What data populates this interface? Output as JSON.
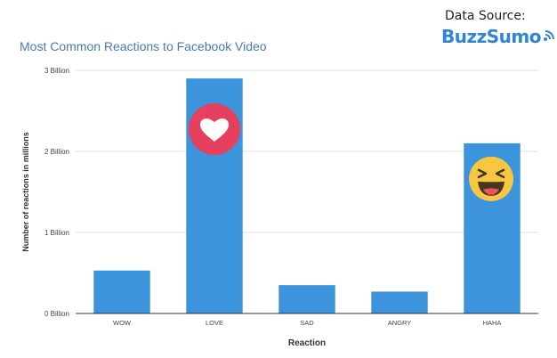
{
  "header": {
    "source_label": "Data Source:",
    "brand_name": "BuzzSumo"
  },
  "colors": {
    "bar": "#3b94dc",
    "title": "#4a7ab0",
    "brand": "#2f86d4",
    "love_badge": "#e6405f",
    "haha_badge": "#f7c642"
  },
  "icons": {
    "love_bar": "heart-icon",
    "haha_bar": "laughing-emoji-icon",
    "brand": "wifi-signal-icon"
  },
  "chart_data": {
    "type": "bar",
    "title": "Most Common Reactions to Facebook Video",
    "xlabel": "Reaction",
    "ylabel": "Number of reactions in millions",
    "categories": [
      "WOW",
      "LOVE",
      "SAD",
      "ANGRY",
      "HAHA"
    ],
    "values": [
      530,
      2900,
      350,
      270,
      2100
    ],
    "yticks": [
      0,
      1000,
      2000,
      3000
    ],
    "ytick_labels": [
      "0 Billion",
      "1 Billion",
      "2 Billion",
      "3 Billion"
    ],
    "ylim": [
      0,
      3000
    ],
    "grid": true,
    "legend": "none"
  }
}
